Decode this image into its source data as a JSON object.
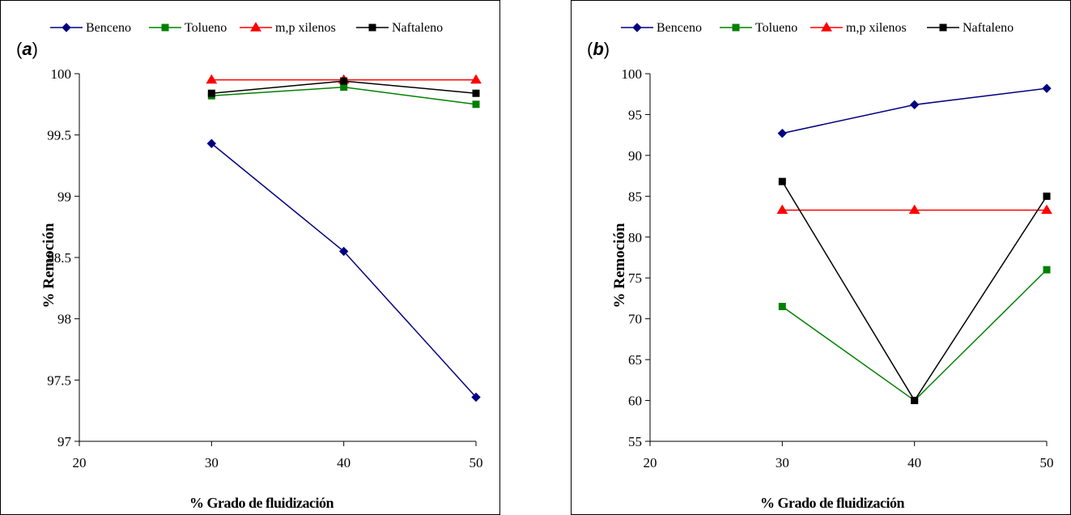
{
  "colors": {
    "benceno": "#000080",
    "tolueno": "#008000",
    "xilenos": "#ff0000",
    "naftaleno": "#000000",
    "frame": "#000000"
  },
  "chart_data": [
    {
      "type": "line",
      "panel_label": "a",
      "xlabel": "% Grado de fluidización",
      "ylabel": "% Remoción",
      "xlim": [
        20,
        50
      ],
      "ylim": [
        97,
        100
      ],
      "xticks": [
        20,
        30,
        40,
        50
      ],
      "yticks": [
        97,
        97.5,
        98,
        98.5,
        99,
        99.5,
        100
      ],
      "x": [
        30,
        40,
        50
      ],
      "legend_position": "top",
      "grid": false,
      "series": [
        {
          "name": "Benceno",
          "marker": "diamond",
          "values": [
            99.43,
            98.55,
            97.36
          ]
        },
        {
          "name": "Tolueno",
          "marker": "square",
          "values": [
            99.82,
            99.89,
            99.75
          ]
        },
        {
          "name": "m,p xilenos",
          "marker": "triangle",
          "values": [
            99.95,
            99.95,
            99.95
          ]
        },
        {
          "name": "Naftaleno",
          "marker": "square",
          "values": [
            99.84,
            99.94,
            99.84
          ]
        }
      ]
    },
    {
      "type": "line",
      "panel_label": "b",
      "xlabel": "% Grado de fluidización",
      "ylabel": "% Remoción",
      "xlim": [
        20,
        50
      ],
      "ylim": [
        55,
        100
      ],
      "xticks": [
        20,
        30,
        40,
        50
      ],
      "yticks": [
        55,
        60,
        65,
        70,
        75,
        80,
        85,
        90,
        95,
        100
      ],
      "x": [
        30,
        40,
        50
      ],
      "legend_position": "top",
      "grid": false,
      "series": [
        {
          "name": "Benceno",
          "marker": "diamond",
          "values": [
            92.7,
            96.2,
            98.2
          ]
        },
        {
          "name": "Tolueno",
          "marker": "square",
          "values": [
            71.5,
            60.0,
            76.0
          ]
        },
        {
          "name": "m,p xilenos",
          "marker": "triangle",
          "values": [
            83.3,
            83.3,
            83.3
          ]
        },
        {
          "name": "Naftaleno",
          "marker": "square",
          "values": [
            86.8,
            60.0,
            85.0
          ]
        }
      ]
    }
  ]
}
